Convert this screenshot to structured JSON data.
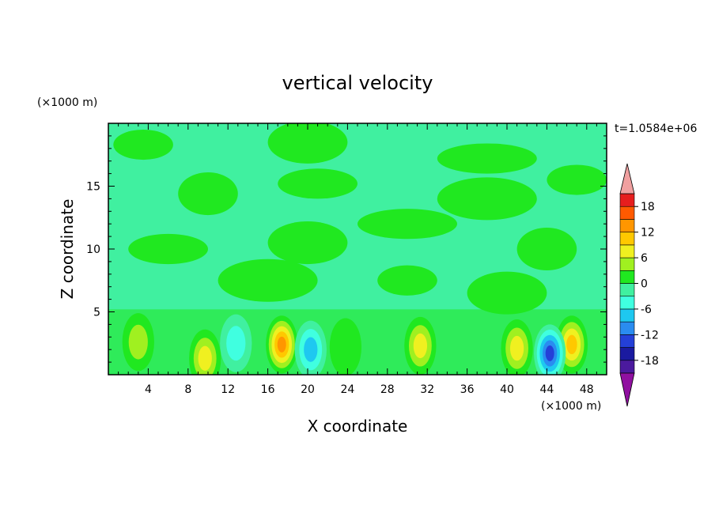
{
  "chart_data": {
    "type": "heatmap",
    "title": "vertical velocity",
    "xlabel": "X coordinate",
    "ylabel": "Z coordinate",
    "x_unit": "(×1000 m)",
    "y_unit": "(×1000 m)",
    "time_label": "t=1.0584e+06",
    "xlim": [
      0,
      50
    ],
    "ylim": [
      0,
      20
    ],
    "x_ticks": [
      4,
      8,
      12,
      16,
      20,
      24,
      28,
      32,
      36,
      40,
      44,
      48
    ],
    "x_tick_labels": [
      "4",
      "8",
      "12",
      "16",
      "20",
      "24",
      "28",
      "32",
      "36",
      "40",
      "44",
      "48"
    ],
    "y_ticks": [
      5,
      10,
      15
    ],
    "y_tick_labels": [
      "5",
      "10",
      "15"
    ],
    "colorbar": {
      "levels": [
        -21,
        -18,
        -15,
        -12,
        -9,
        -6,
        -3,
        0,
        3,
        6,
        9,
        12,
        15,
        18,
        21
      ],
      "labels": [
        "18",
        "12",
        "6",
        "0",
        "-6",
        "-12",
        "-18"
      ],
      "label_values": [
        18,
        12,
        6,
        0,
        -6,
        -12,
        -18
      ],
      "colors": [
        "#4b1a9e",
        "#1a1aa0",
        "#2440d8",
        "#2a8cf0",
        "#1ec8f0",
        "#40ffe0",
        "#40f0a0",
        "#20e820",
        "#a0f020",
        "#f0f020",
        "#ffc800",
        "#ff9600",
        "#ff5a00",
        "#e61e1e"
      ],
      "under_color": "#9010a0",
      "over_color": "#f0a0a0",
      "background_level_color": "#40f0a0"
    },
    "updrafts": [
      {
        "x": 3.0,
        "z": 2.6,
        "peak": 6
      },
      {
        "x": 9.7,
        "z": 1.3,
        "peak": 9
      },
      {
        "x": 17.4,
        "z": 2.4,
        "peak": 15
      },
      {
        "x": 23.8,
        "z": 2.2,
        "peak": 5
      },
      {
        "x": 31.3,
        "z": 2.3,
        "peak": 9
      },
      {
        "x": 41.0,
        "z": 2.1,
        "peak": 10
      },
      {
        "x": 46.5,
        "z": 2.4,
        "peak": 13
      }
    ],
    "downdrafts": [
      {
        "x": 12.8,
        "z": 2.5,
        "peak": -8
      },
      {
        "x": 20.3,
        "z": 2.0,
        "peak": -9
      },
      {
        "x": 44.3,
        "z": 1.7,
        "peak": -15
      }
    ],
    "weak_upward_regions": [
      {
        "x": 3.5,
        "z": 18.3
      },
      {
        "x": 20.0,
        "z": 18.5
      },
      {
        "x": 38.0,
        "z": 17.2
      },
      {
        "x": 10.0,
        "z": 14.4
      },
      {
        "x": 21.0,
        "z": 15.2
      },
      {
        "x": 38.0,
        "z": 14.0
      },
      {
        "x": 47.0,
        "z": 15.5
      },
      {
        "x": 20.0,
        "z": 10.5
      },
      {
        "x": 30.0,
        "z": 12.0
      },
      {
        "x": 44.0,
        "z": 10.0
      },
      {
        "x": 6.0,
        "z": 10.0
      },
      {
        "x": 16.0,
        "z": 7.5
      },
      {
        "x": 30.0,
        "z": 7.5
      },
      {
        "x": 40.0,
        "z": 6.5
      }
    ]
  }
}
